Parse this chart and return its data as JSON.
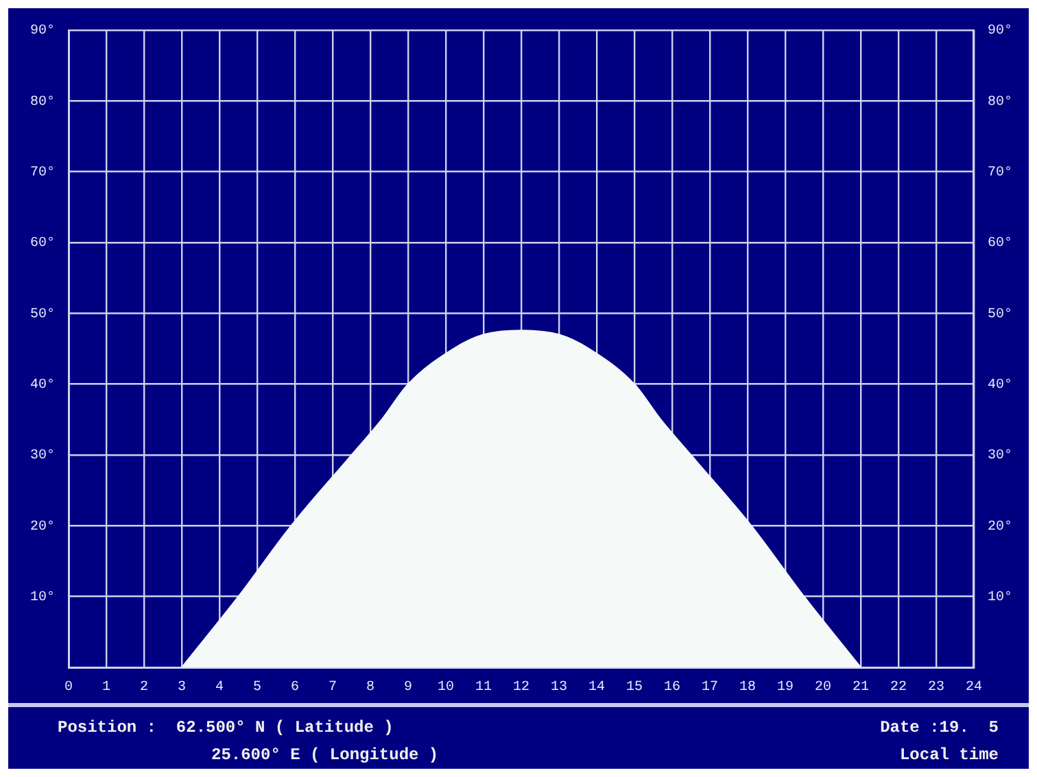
{
  "chart_data": {
    "type": "area",
    "x": [
      3,
      4.5,
      5.9,
      7.5,
      8.3,
      9,
      10.2,
      11,
      12,
      13,
      13.8,
      15,
      15.7,
      16.5,
      18.1,
      19.5,
      21
    ],
    "series": [
      {
        "color": "#f5faf8",
        "values": [
          0,
          10,
          20,
          30,
          35,
          40,
          45,
          47,
          47.6,
          47,
          45,
          40,
          35,
          30,
          20,
          10,
          0
        ]
      }
    ],
    "xlim": [
      0,
      24
    ],
    "xticks": [
      0,
      1,
      2,
      3,
      4,
      5,
      6,
      7,
      8,
      9,
      10,
      11,
      12,
      13,
      14,
      15,
      16,
      17,
      18,
      19,
      20,
      21,
      22,
      23,
      24
    ],
    "ylim": [
      0,
      90
    ],
    "yticks": [
      {
        "value": 10,
        "label": "10°"
      },
      {
        "value": 20,
        "label": "20°"
      },
      {
        "value": 30,
        "label": "30°"
      },
      {
        "value": 40,
        "label": "40°"
      },
      {
        "value": 50,
        "label": "50°"
      },
      {
        "value": 60,
        "label": "60°"
      },
      {
        "value": 70,
        "label": "70°"
      },
      {
        "value": 80,
        "label": "80°"
      },
      {
        "value": 90,
        "label": "90°"
      }
    ],
    "y2lim": [
      0,
      90
    ],
    "y2ticks": [
      {
        "value": 10,
        "label": "10°"
      },
      {
        "value": 20,
        "label": "20°"
      },
      {
        "value": 30,
        "label": "30°"
      },
      {
        "value": 40,
        "label": "40°"
      },
      {
        "value": 50,
        "label": "50°"
      },
      {
        "value": 60,
        "label": "60°"
      },
      {
        "value": 70,
        "label": "70°"
      },
      {
        "value": 80,
        "label": "80°"
      },
      {
        "value": 90,
        "label": "90°"
      }
    ],
    "grid": true,
    "legend": false,
    "annotations": [
      "Position :  62.500° N ( Latitude )",
      "25.600° E ( Longitude )",
      "Date :19.  5",
      "Local time"
    ]
  }
}
